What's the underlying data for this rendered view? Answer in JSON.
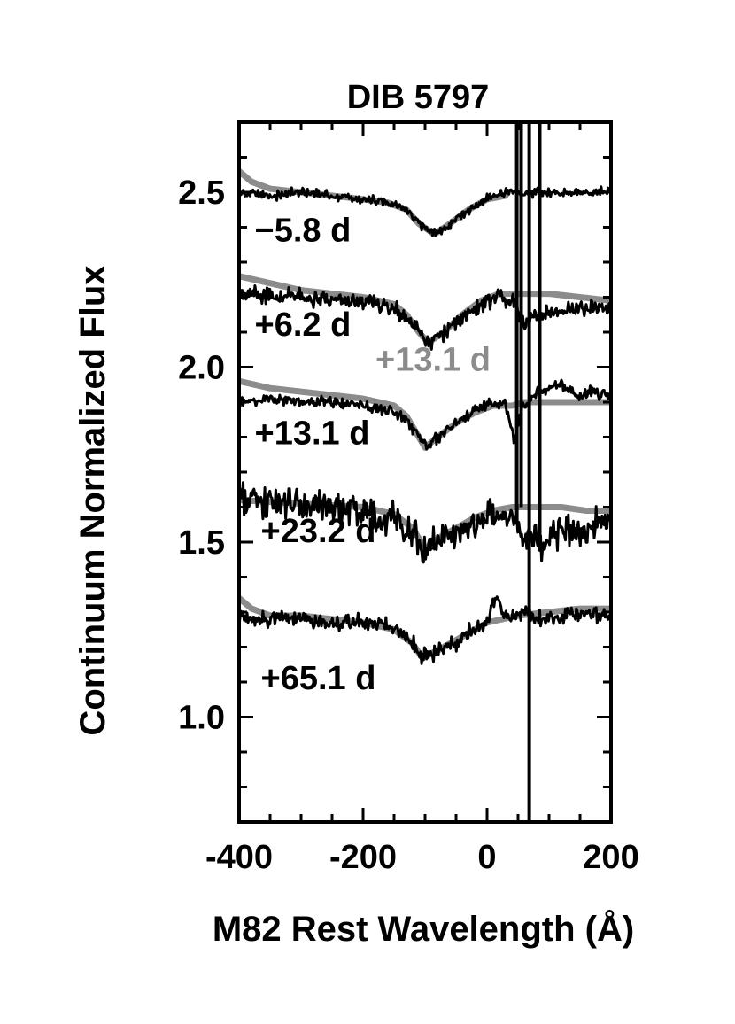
{
  "chart_data": {
    "type": "line",
    "title": "DIB 5797",
    "xlabel": "M82 Rest Wavelength (Å)",
    "ylabel": "Continuum Normalized Flux",
    "xlim": [
      -400,
      200
    ],
    "ylim": [
      0.7,
      2.7
    ],
    "x_ticks": [
      -400,
      -200,
      0,
      200
    ],
    "x_tick_labels": [
      "-400",
      "-200",
      "0",
      "200"
    ],
    "y_ticks": [
      1.0,
      1.5,
      2.0,
      2.5
    ],
    "y_tick_labels": [
      "1.0",
      "1.5",
      "2.0",
      "2.5"
    ],
    "grid": false,
    "colors": {
      "observed": "#000000",
      "reference": "#8c8c8c"
    },
    "annotations": [
      {
        "text": "+13.1 d",
        "x": -180,
        "y": 1.99,
        "color": "#8c8c8c"
      }
    ],
    "vertical_lines": [
      {
        "x": 48,
        "ymin": 1.55,
        "ymax": 2.7
      },
      {
        "x": 55,
        "ymin": 1.6,
        "ymax": 2.7
      },
      {
        "x": 68,
        "ymin": 0.7,
        "ymax": 2.7
      },
      {
        "x": 85,
        "ymin": 1.5,
        "ymax": 2.7
      }
    ],
    "series": [
      {
        "name": "−5.8 d",
        "label_pos": [
          -375,
          2.36
        ],
        "observed": {
          "x": [
            -400,
            -350,
            -300,
            -250,
            -200,
            -160,
            -130,
            -110,
            -85,
            -60,
            -30,
            0,
            30,
            60,
            100,
            150,
            200
          ],
          "y": [
            2.5,
            2.49,
            2.5,
            2.49,
            2.48,
            2.47,
            2.45,
            2.41,
            2.38,
            2.41,
            2.45,
            2.48,
            2.5,
            2.5,
            2.5,
            2.5,
            2.5
          ],
          "noise": 0.01
        },
        "reference": {
          "x": [
            -400,
            -380,
            -350,
            -300,
            -250,
            -200,
            -160,
            -130,
            -110,
            -85,
            -60,
            -30,
            0,
            30
          ],
          "y": [
            2.56,
            2.53,
            2.51,
            2.5,
            2.49,
            2.48,
            2.47,
            2.45,
            2.41,
            2.38,
            2.41,
            2.45,
            2.48,
            2.49
          ]
        }
      },
      {
        "name": "+6.2 d",
        "label_pos": [
          -375,
          2.09
        ],
        "observed": {
          "x": [
            -400,
            -300,
            -200,
            -150,
            -130,
            -110,
            -95,
            -70,
            -40,
            -10,
            20,
            45,
            60,
            80,
            120,
            160,
            200
          ],
          "y": [
            2.21,
            2.2,
            2.19,
            2.17,
            2.14,
            2.1,
            2.07,
            2.1,
            2.14,
            2.18,
            2.2,
            2.19,
            2.12,
            2.15,
            2.16,
            2.17,
            2.16
          ],
          "noise": 0.018
        },
        "reference": {
          "x": [
            -400,
            -350,
            -300,
            -200,
            -150,
            -130,
            -110,
            -95,
            -70,
            -40,
            -10,
            20,
            50,
            100,
            150,
            200
          ],
          "y": [
            2.26,
            2.24,
            2.22,
            2.2,
            2.18,
            2.15,
            2.1,
            2.07,
            2.1,
            2.15,
            2.19,
            2.21,
            2.21,
            2.21,
            2.2,
            2.19
          ]
        }
      },
      {
        "name": "+13.1 d",
        "label_pos": [
          -375,
          1.78
        ],
        "observed": {
          "x": [
            -400,
            -350,
            -300,
            -250,
            -200,
            -150,
            -130,
            -110,
            -100,
            -80,
            -50,
            -20,
            10,
            30,
            45,
            55,
            80,
            120,
            150,
            175,
            200
          ],
          "y": [
            1.9,
            1.91,
            1.9,
            1.9,
            1.89,
            1.87,
            1.85,
            1.8,
            1.77,
            1.8,
            1.84,
            1.88,
            1.9,
            1.89,
            1.78,
            1.88,
            1.93,
            1.95,
            1.92,
            1.93,
            1.91
          ],
          "noise": 0.012
        },
        "reference": {
          "x": [
            -400,
            -350,
            -300,
            -250,
            -200,
            -150,
            -130,
            -110,
            -100,
            -80,
            -50,
            -20,
            10,
            40,
            60,
            100,
            150,
            200
          ],
          "y": [
            1.96,
            1.94,
            1.93,
            1.92,
            1.91,
            1.89,
            1.86,
            1.8,
            1.77,
            1.8,
            1.84,
            1.87,
            1.89,
            1.89,
            1.9,
            1.9,
            1.9,
            1.9
          ]
        }
      },
      {
        "name": "+23.2 d",
        "label_pos": [
          -365,
          1.5
        ],
        "observed": {
          "x": [
            -400,
            -350,
            -300,
            -250,
            -200,
            -150,
            -120,
            -100,
            -80,
            -50,
            -20,
            10,
            40,
            60,
            90,
            120,
            150,
            180,
            200
          ],
          "y": [
            1.62,
            1.61,
            1.6,
            1.6,
            1.58,
            1.56,
            1.53,
            1.48,
            1.5,
            1.53,
            1.56,
            1.58,
            1.58,
            1.52,
            1.5,
            1.55,
            1.52,
            1.56,
            1.55
          ],
          "noise": 0.035
        },
        "reference": {
          "x": [
            -400,
            -300,
            -200,
            -150,
            -120,
            -100,
            -80,
            -50,
            -20,
            10,
            40,
            80,
            120,
            160,
            200
          ],
          "y": [
            1.62,
            1.61,
            1.6,
            1.58,
            1.54,
            1.48,
            1.51,
            1.54,
            1.57,
            1.59,
            1.6,
            1.6,
            1.6,
            1.59,
            1.59
          ]
        }
      },
      {
        "name": "+65.1 d",
        "label_pos": [
          -365,
          1.08
        ],
        "observed": {
          "x": [
            -400,
            -350,
            -300,
            -250,
            -200,
            -150,
            -120,
            -105,
            -80,
            -50,
            -20,
            0,
            15,
            30,
            60,
            100,
            150,
            200
          ],
          "y": [
            1.28,
            1.28,
            1.28,
            1.27,
            1.27,
            1.25,
            1.21,
            1.17,
            1.19,
            1.21,
            1.25,
            1.27,
            1.35,
            1.28,
            1.3,
            1.28,
            1.3,
            1.29
          ],
          "noise": 0.016
        },
        "reference": {
          "x": [
            -400,
            -380,
            -350,
            -300,
            -250,
            -200,
            -150,
            -120,
            -105,
            -80,
            -50,
            -20,
            0,
            50,
            100,
            150,
            200
          ],
          "y": [
            1.34,
            1.31,
            1.29,
            1.29,
            1.28,
            1.27,
            1.25,
            1.21,
            1.17,
            1.19,
            1.22,
            1.25,
            1.27,
            1.29,
            1.3,
            1.31,
            1.31
          ]
        }
      }
    ]
  }
}
